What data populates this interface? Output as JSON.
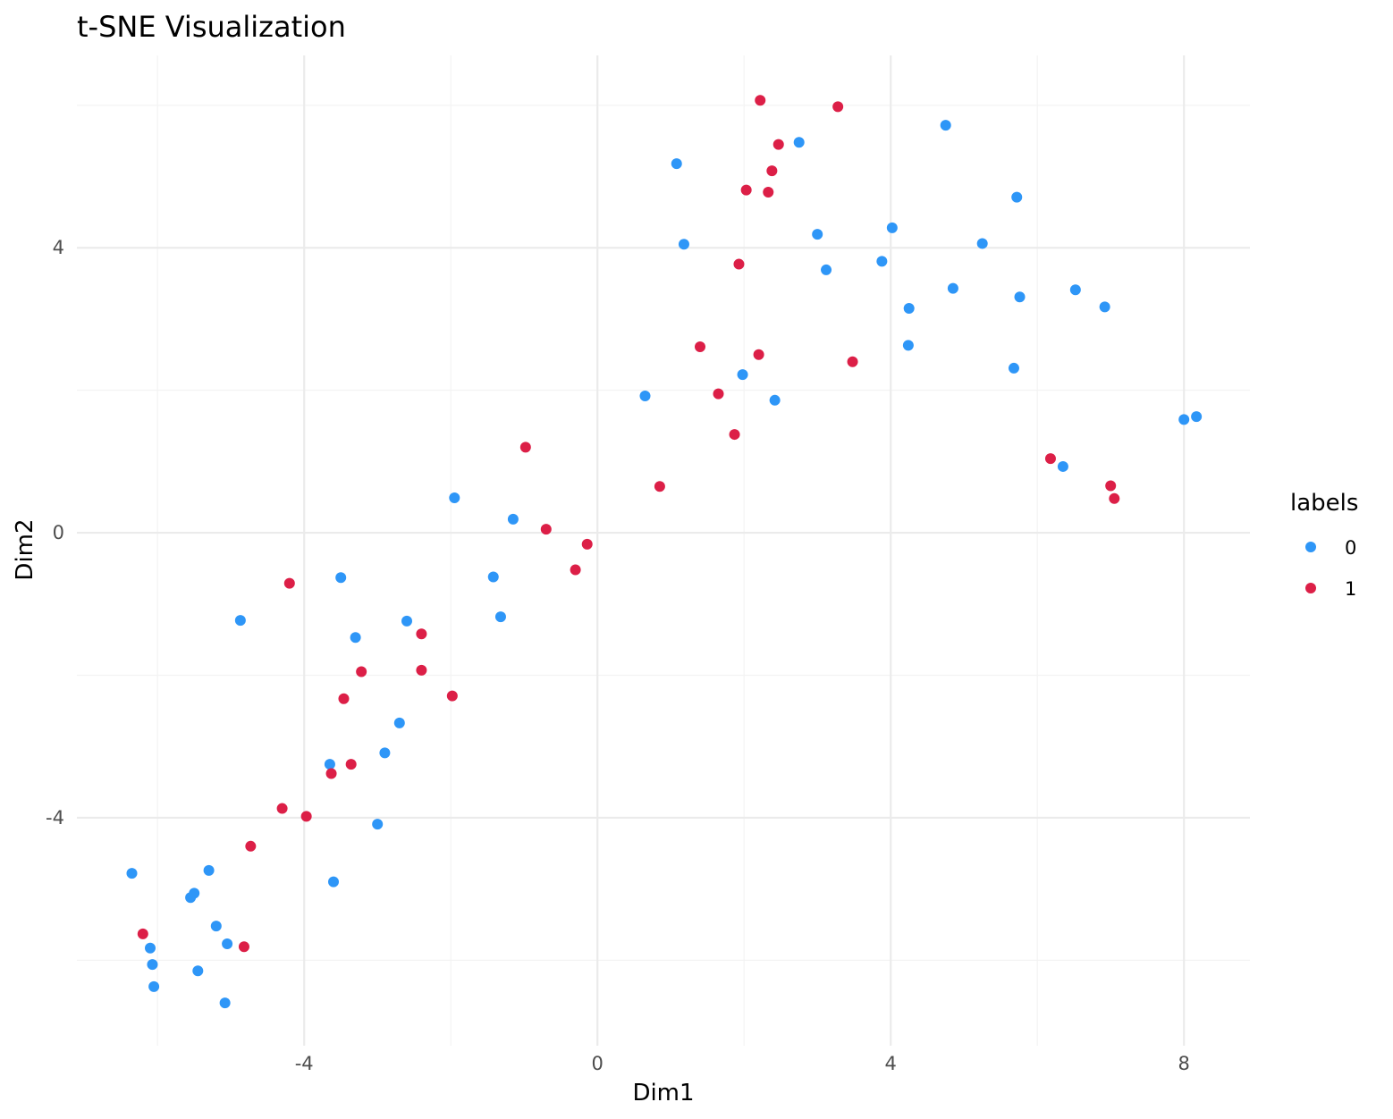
{
  "chart_data": {
    "type": "scatter",
    "title": "t-SNE Visualization",
    "xlabel": "Dim1",
    "ylabel": "Dim2",
    "xlim": [
      -7.1,
      8.9
    ],
    "ylim": [
      -7.2,
      6.7
    ],
    "xticks": [
      -4,
      0,
      4,
      8
    ],
    "yticks": [
      -4,
      0,
      4
    ],
    "xtick_labels": [
      "-4",
      "0",
      "4",
      "8"
    ],
    "ytick_labels": [
      "-4",
      "0",
      "4"
    ],
    "grid": true,
    "legend": {
      "title": "labels",
      "position": "right"
    },
    "series": [
      {
        "name": "0",
        "color": "#2E96F7",
        "points": [
          [
            1.08,
            5.18
          ],
          [
            2.75,
            5.48
          ],
          [
            4.75,
            5.72
          ],
          [
            5.72,
            4.71
          ],
          [
            1.18,
            4.05
          ],
          [
            3.0,
            4.19
          ],
          [
            4.02,
            4.28
          ],
          [
            5.25,
            4.06
          ],
          [
            3.12,
            3.69
          ],
          [
            3.88,
            3.81
          ],
          [
            4.85,
            3.43
          ],
          [
            5.76,
            3.31
          ],
          [
            6.52,
            3.41
          ],
          [
            6.92,
            3.17
          ],
          [
            4.25,
            3.15
          ],
          [
            4.24,
            2.63
          ],
          [
            5.68,
            2.31
          ],
          [
            1.98,
            2.22
          ],
          [
            0.65,
            1.92
          ],
          [
            2.42,
            1.86
          ],
          [
            8.0,
            1.59
          ],
          [
            8.17,
            1.63
          ],
          [
            6.35,
            0.93
          ],
          [
            -1.95,
            0.49
          ],
          [
            -1.15,
            0.19
          ],
          [
            -1.42,
            -0.62
          ],
          [
            -1.32,
            -1.18
          ],
          [
            -3.5,
            -0.63
          ],
          [
            -4.87,
            -1.23
          ],
          [
            -2.6,
            -1.24
          ],
          [
            -3.3,
            -1.47
          ],
          [
            -2.7,
            -2.67
          ],
          [
            -2.9,
            -3.09
          ],
          [
            -3.65,
            -3.25
          ],
          [
            -3.0,
            -4.09
          ],
          [
            -3.6,
            -4.9
          ],
          [
            -6.35,
            -4.78
          ],
          [
            -5.3,
            -4.74
          ],
          [
            -5.55,
            -5.12
          ],
          [
            -5.5,
            -5.06
          ],
          [
            -5.2,
            -5.52
          ],
          [
            -5.05,
            -5.77
          ],
          [
            -6.1,
            -5.83
          ],
          [
            -6.07,
            -6.06
          ],
          [
            -5.45,
            -6.15
          ],
          [
            -6.05,
            -6.37
          ],
          [
            -5.08,
            -6.6
          ]
        ]
      },
      {
        "name": "1",
        "color": "#DC1F47",
        "points": [
          [
            2.22,
            6.07
          ],
          [
            3.28,
            5.98
          ],
          [
            2.47,
            5.45
          ],
          [
            2.38,
            5.08
          ],
          [
            2.03,
            4.81
          ],
          [
            2.33,
            4.78
          ],
          [
            1.93,
            3.77
          ],
          [
            1.4,
            2.61
          ],
          [
            2.2,
            2.5
          ],
          [
            3.48,
            2.4
          ],
          [
            1.65,
            1.95
          ],
          [
            1.87,
            1.38
          ],
          [
            -0.98,
            1.2
          ],
          [
            0.85,
            0.65
          ],
          [
            -0.7,
            0.05
          ],
          [
            -0.14,
            -0.16
          ],
          [
            -0.3,
            -0.52
          ],
          [
            6.18,
            1.04
          ],
          [
            7.0,
            0.66
          ],
          [
            7.05,
            0.48
          ],
          [
            -4.2,
            -0.71
          ],
          [
            -2.4,
            -1.42
          ],
          [
            -3.22,
            -1.95
          ],
          [
            -2.4,
            -1.93
          ],
          [
            -1.98,
            -2.29
          ],
          [
            -3.46,
            -2.33
          ],
          [
            -3.36,
            -3.25
          ],
          [
            -3.63,
            -3.38
          ],
          [
            -4.3,
            -3.87
          ],
          [
            -3.97,
            -3.98
          ],
          [
            -4.73,
            -4.4
          ],
          [
            -6.2,
            -5.63
          ],
          [
            -4.82,
            -5.81
          ]
        ]
      }
    ]
  }
}
